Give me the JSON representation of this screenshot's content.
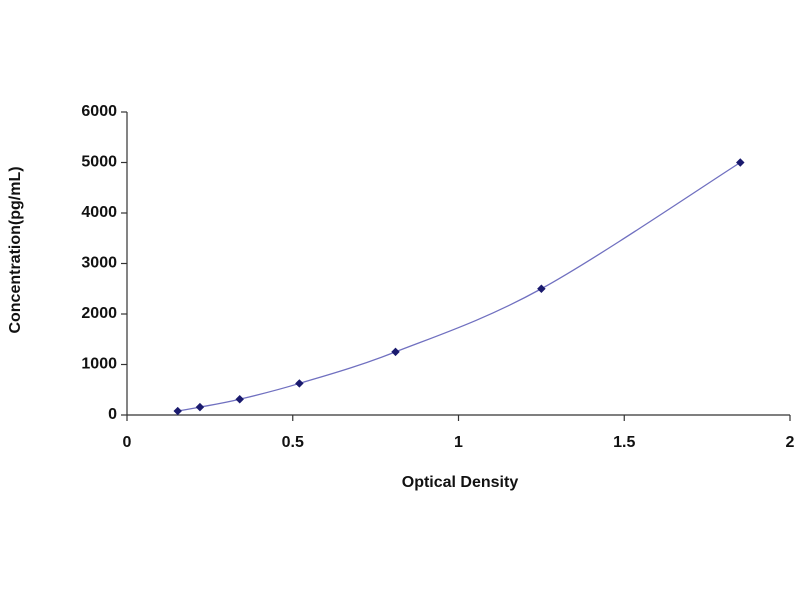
{
  "chart_data": {
    "type": "scatter",
    "x_label": "Optical Density",
    "y_label": "Concentration(pg/mL)",
    "x": [
      0.153,
      0.22,
      0.34,
      0.52,
      0.81,
      1.25,
      1.85
    ],
    "values": [
      78,
      156,
      312,
      625,
      1250,
      2500,
      5000
    ],
    "color": "#1a1a6e",
    "line_color": "#7070c0",
    "xlim": [
      0,
      2
    ],
    "xticks": [
      0,
      0.5,
      1,
      1.5,
      2
    ],
    "ylim": [
      0,
      6000
    ],
    "yticks": [
      0,
      1000,
      2000,
      3000,
      4000,
      5000,
      6000
    ],
    "grid": false
  }
}
